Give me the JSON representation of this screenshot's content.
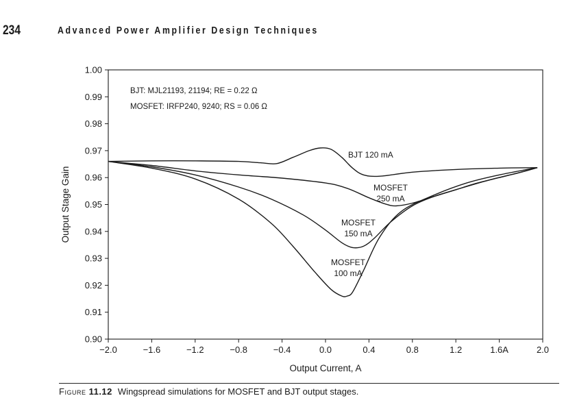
{
  "header": {
    "page_number": "234",
    "running_head": "Advanced Power Amplifier Design Techniques"
  },
  "caption": {
    "label": "Figure",
    "number": "11.12",
    "text": "Wingspread simulations for MOSFET and BJT output stages."
  },
  "chart_data": {
    "type": "line",
    "title": "",
    "xlabel": "Output Current, A",
    "ylabel": "Output Stage Gain",
    "xlim": [
      -2.0,
      2.0
    ],
    "ylim": [
      0.9,
      1.0
    ],
    "x_ticks": [
      -2.0,
      -1.6,
      -1.2,
      -0.8,
      -0.4,
      0.0,
      0.4,
      0.8,
      1.2,
      1.6,
      2.0
    ],
    "x_tick_labels": [
      "−2.0",
      "−1.6",
      "−1.2",
      "−0.8",
      "−0.4",
      "0.0",
      "0.4",
      "0.8",
      "1.2",
      "1.6A",
      "2.0"
    ],
    "y_ticks": [
      0.9,
      0.91,
      0.92,
      0.93,
      0.94,
      0.95,
      0.96,
      0.97,
      0.98,
      0.99,
      1.0
    ],
    "y_tick_labels": [
      "0.90",
      "0.91",
      "0.92",
      "0.93",
      "0.94",
      "0.95",
      "0.96",
      "0.97",
      "0.98",
      "0.99",
      "1.00"
    ],
    "grid": false,
    "annotations": [
      "BJT: MJL21193, 21194; RE = 0.22 Ω",
      "MOSFET: IRFP240, 9240; RS = 0.06 Ω"
    ],
    "series": [
      {
        "name": "BJT 120 mA",
        "label_lines": [
          "BJT 120 mA"
        ],
        "x": [
          -2.0,
          -1.6,
          -1.2,
          -0.8,
          -0.6,
          -0.45,
          -0.3,
          -0.15,
          -0.05,
          0.05,
          0.15,
          0.25,
          0.35,
          0.5,
          0.8,
          1.2,
          1.6,
          1.95
        ],
        "y": [
          0.966,
          0.9662,
          0.9662,
          0.966,
          0.9655,
          0.9652,
          0.9675,
          0.97,
          0.971,
          0.9705,
          0.9675,
          0.9635,
          0.961,
          0.9605,
          0.962,
          0.963,
          0.9635,
          0.9637
        ]
      },
      {
        "name": "MOSFET 250 mA",
        "label_lines": [
          "MOSFET",
          "250 mA"
        ],
        "x": [
          -2.0,
          -1.6,
          -1.2,
          -0.8,
          -0.4,
          0.0,
          0.2,
          0.4,
          0.55,
          0.65,
          0.8,
          1.0,
          1.2,
          1.4,
          1.6,
          1.8,
          1.95
        ],
        "y": [
          0.966,
          0.9645,
          0.9625,
          0.961,
          0.9598,
          0.958,
          0.956,
          0.9525,
          0.9502,
          0.9495,
          0.9505,
          0.953,
          0.9555,
          0.958,
          0.96,
          0.962,
          0.9637
        ]
      },
      {
        "name": "MOSFET 150 mA",
        "label_lines": [
          "MOSFET",
          "150 mA"
        ],
        "x": [
          -2.0,
          -1.6,
          -1.2,
          -0.8,
          -0.5,
          -0.2,
          0.0,
          0.15,
          0.25,
          0.35,
          0.45,
          0.6,
          0.8,
          1.0,
          1.2,
          1.5,
          1.8,
          1.95
        ],
        "y": [
          0.966,
          0.964,
          0.961,
          0.9565,
          0.952,
          0.946,
          0.9405,
          0.9358,
          0.934,
          0.9345,
          0.9375,
          0.9435,
          0.9495,
          0.953,
          0.9555,
          0.959,
          0.962,
          0.9637
        ]
      },
      {
        "name": "MOSFET 100 mA",
        "label_lines": [
          "MOSFET",
          "100 mA"
        ],
        "x": [
          -2.0,
          -1.6,
          -1.2,
          -0.8,
          -0.5,
          -0.3,
          -0.1,
          0.05,
          0.15,
          0.2,
          0.25,
          0.35,
          0.5,
          0.7,
          1.0,
          1.3,
          1.6,
          1.95
        ],
        "y": [
          0.966,
          0.9635,
          0.9595,
          0.952,
          0.943,
          0.9345,
          0.925,
          0.9185,
          0.916,
          0.916,
          0.9175,
          0.9255,
          0.938,
          0.9475,
          0.9535,
          0.958,
          0.961,
          0.9637
        ]
      }
    ],
    "line_color": "#1a1a1a"
  }
}
